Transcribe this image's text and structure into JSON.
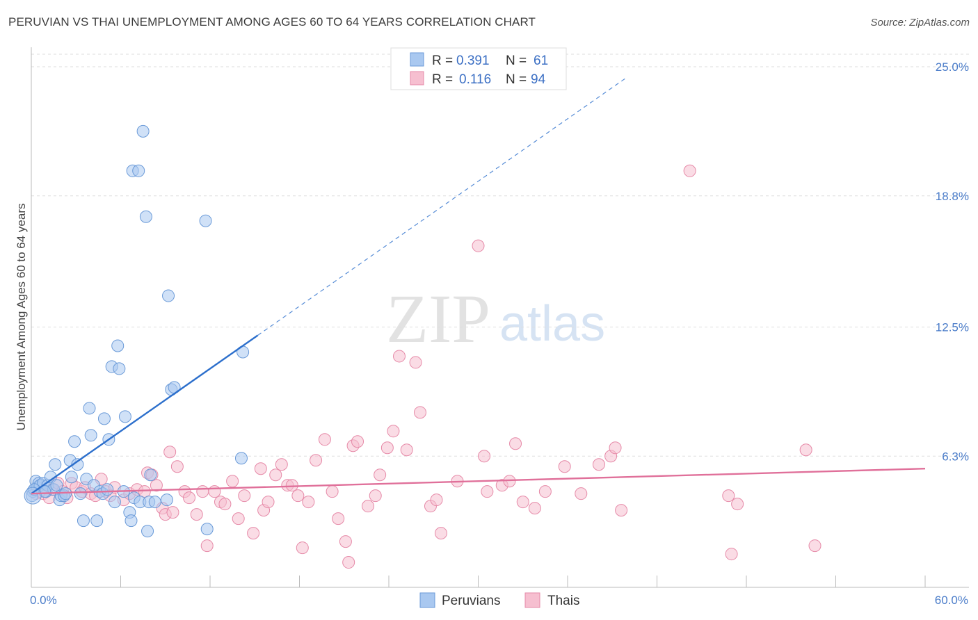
{
  "title": "PERUVIAN VS THAI UNEMPLOYMENT AMONG AGES 60 TO 64 YEARS CORRELATION CHART",
  "source": "Source: ZipAtlas.com",
  "watermark": {
    "zip": "ZIP",
    "atlas": "atlas"
  },
  "colors": {
    "peruvian_fill": "#a9c8f0",
    "peruvian_stroke": "#6a9ad8",
    "peruvian_line": "#2c6fcc",
    "thai_fill": "#f6bfd0",
    "thai_stroke": "#e68aa8",
    "thai_line": "#e0709a",
    "tick_text": "#4a7cc9",
    "grid": "#dddddd"
  },
  "legend": {
    "rows": [
      {
        "r_label": "R =",
        "r_value": "0.391",
        "n_label": "N =",
        "n_value": "61"
      },
      {
        "r_label": "R =",
        "r_value": "0.116",
        "n_label": "N =",
        "n_value": "94"
      }
    ]
  },
  "chart_data": {
    "type": "scatter",
    "title": "PERUVIAN VS THAI UNEMPLOYMENT AMONG AGES 60 TO 64 YEARS CORRELATION CHART",
    "xlabel": "",
    "ylabel": "Unemployment Among Ages 60 to 64 years",
    "xlim": [
      0,
      60
    ],
    "ylim": [
      0,
      25.8
    ],
    "x_tick_labels": [
      "0.0%",
      "60.0%"
    ],
    "y_ticks": [
      6.3,
      12.5,
      18.8,
      25.0
    ],
    "y_tick_labels": [
      "6.3%",
      "12.5%",
      "18.8%",
      "25.0%"
    ],
    "grid": true,
    "legend_position": "bottom-center",
    "series": [
      {
        "name": "Peruvians",
        "r": 0.391,
        "n": 61,
        "trend": {
          "x0": 0,
          "y0": 4.5,
          "x1": 15.2,
          "y1": 12.1,
          "dash_to_x": 40
        },
        "points": [
          [
            0.1,
            4.6
          ],
          [
            0.3,
            5.1
          ],
          [
            0.4,
            4.8
          ],
          [
            0.5,
            5.0
          ],
          [
            0.6,
            4.9
          ],
          [
            0.8,
            5.0
          ],
          [
            1.0,
            4.6
          ],
          [
            1.1,
            4.9
          ],
          [
            1.3,
            5.3
          ],
          [
            1.5,
            4.7
          ],
          [
            1.6,
            5.9
          ],
          [
            1.7,
            4.9
          ],
          [
            1.9,
            4.2
          ],
          [
            2.0,
            4.4
          ],
          [
            2.2,
            4.4
          ],
          [
            2.3,
            4.5
          ],
          [
            2.6,
            6.1
          ],
          [
            2.7,
            5.3
          ],
          [
            2.9,
            7.0
          ],
          [
            3.1,
            5.9
          ],
          [
            3.3,
            4.5
          ],
          [
            3.5,
            3.2
          ],
          [
            3.7,
            5.2
          ],
          [
            3.9,
            8.6
          ],
          [
            4.0,
            7.3
          ],
          [
            4.2,
            4.9
          ],
          [
            4.4,
            3.2
          ],
          [
            4.6,
            4.6
          ],
          [
            4.8,
            4.5
          ],
          [
            4.9,
            8.1
          ],
          [
            5.1,
            4.7
          ],
          [
            5.2,
            7.1
          ],
          [
            5.4,
            10.6
          ],
          [
            5.6,
            4.1
          ],
          [
            5.8,
            11.6
          ],
          [
            5.9,
            10.5
          ],
          [
            6.2,
            4.6
          ],
          [
            6.3,
            8.2
          ],
          [
            6.6,
            3.6
          ],
          [
            6.7,
            3.2
          ],
          [
            6.8,
            20.0
          ],
          [
            6.9,
            4.3
          ],
          [
            7.2,
            20.0
          ],
          [
            7.3,
            4.1
          ],
          [
            7.5,
            21.9
          ],
          [
            7.7,
            17.8
          ],
          [
            7.9,
            4.1
          ],
          [
            7.8,
            2.7
          ],
          [
            8.0,
            5.4
          ],
          [
            8.3,
            4.1
          ],
          [
            9.1,
            4.2
          ],
          [
            9.2,
            14.0
          ],
          [
            9.4,
            9.5
          ],
          [
            9.6,
            9.6
          ],
          [
            11.7,
            17.6
          ],
          [
            11.8,
            2.8
          ],
          [
            14.1,
            6.2
          ],
          [
            14.2,
            11.3
          ],
          [
            0.05,
            4.4
          ],
          [
            0.2,
            4.7
          ],
          [
            0.9,
            4.6
          ]
        ]
      },
      {
        "name": "Thais",
        "r": 0.116,
        "n": 94,
        "trend": {
          "x0": 0,
          "y0": 4.5,
          "x1": 60,
          "y1": 5.7
        },
        "points": [
          [
            0.3,
            4.5
          ],
          [
            0.6,
            4.6
          ],
          [
            0.8,
            4.5
          ],
          [
            1.2,
            4.3
          ],
          [
            1.4,
            4.7
          ],
          [
            1.8,
            5.0
          ],
          [
            2.1,
            4.6
          ],
          [
            2.4,
            4.3
          ],
          [
            2.7,
            5.0
          ],
          [
            3.0,
            4.8
          ],
          [
            3.4,
            4.6
          ],
          [
            3.6,
            4.8
          ],
          [
            4.0,
            4.5
          ],
          [
            4.3,
            4.4
          ],
          [
            4.7,
            5.2
          ],
          [
            5.0,
            4.6
          ],
          [
            5.3,
            4.4
          ],
          [
            5.6,
            4.8
          ],
          [
            6.2,
            4.2
          ],
          [
            6.6,
            4.5
          ],
          [
            7.1,
            4.7
          ],
          [
            7.6,
            4.6
          ],
          [
            7.8,
            5.5
          ],
          [
            8.1,
            5.4
          ],
          [
            8.4,
            4.9
          ],
          [
            8.8,
            3.8
          ],
          [
            9.0,
            3.5
          ],
          [
            9.3,
            6.5
          ],
          [
            9.5,
            3.6
          ],
          [
            9.8,
            5.8
          ],
          [
            10.3,
            4.6
          ],
          [
            10.6,
            4.3
          ],
          [
            11.1,
            3.5
          ],
          [
            11.5,
            4.6
          ],
          [
            11.8,
            2.0
          ],
          [
            12.3,
            4.6
          ],
          [
            12.7,
            4.1
          ],
          [
            13.0,
            4.0
          ],
          [
            13.5,
            5.1
          ],
          [
            13.9,
            3.3
          ],
          [
            14.3,
            4.4
          ],
          [
            14.9,
            2.6
          ],
          [
            15.4,
            5.7
          ],
          [
            15.6,
            3.7
          ],
          [
            15.9,
            4.1
          ],
          [
            16.4,
            5.4
          ],
          [
            16.8,
            5.9
          ],
          [
            17.2,
            4.9
          ],
          [
            17.5,
            4.9
          ],
          [
            17.9,
            4.4
          ],
          [
            18.6,
            4.1
          ],
          [
            19.1,
            6.1
          ],
          [
            19.7,
            7.1
          ],
          [
            20.2,
            4.6
          ],
          [
            20.6,
            3.3
          ],
          [
            21.1,
            2.2
          ],
          [
            21.6,
            6.8
          ],
          [
            21.9,
            7.0
          ],
          [
            22.6,
            3.9
          ],
          [
            23.1,
            4.4
          ],
          [
            23.4,
            5.4
          ],
          [
            23.9,
            6.7
          ],
          [
            24.3,
            7.5
          ],
          [
            24.7,
            11.1
          ],
          [
            25.2,
            6.6
          ],
          [
            25.8,
            10.8
          ],
          [
            26.1,
            8.4
          ],
          [
            26.8,
            3.9
          ],
          [
            27.2,
            4.2
          ],
          [
            27.5,
            2.6
          ],
          [
            28.6,
            5.1
          ],
          [
            30.0,
            16.4
          ],
          [
            30.4,
            6.3
          ],
          [
            30.6,
            4.6
          ],
          [
            31.6,
            4.9
          ],
          [
            32.1,
            5.1
          ],
          [
            32.5,
            6.9
          ],
          [
            33.0,
            4.1
          ],
          [
            33.8,
            3.8
          ],
          [
            34.5,
            4.6
          ],
          [
            35.8,
            5.8
          ],
          [
            36.9,
            4.5
          ],
          [
            38.1,
            5.9
          ],
          [
            38.9,
            6.3
          ],
          [
            39.2,
            6.7
          ],
          [
            39.6,
            3.7
          ],
          [
            44.2,
            20.0
          ],
          [
            46.8,
            4.4
          ],
          [
            47.0,
            1.6
          ],
          [
            47.4,
            4.0
          ],
          [
            52.0,
            6.6
          ],
          [
            52.6,
            2.0
          ],
          [
            21.3,
            1.2
          ],
          [
            18.2,
            1.9
          ]
        ]
      }
    ]
  },
  "bottom_legend": {
    "items": [
      "Peruvians",
      "Thais"
    ]
  }
}
